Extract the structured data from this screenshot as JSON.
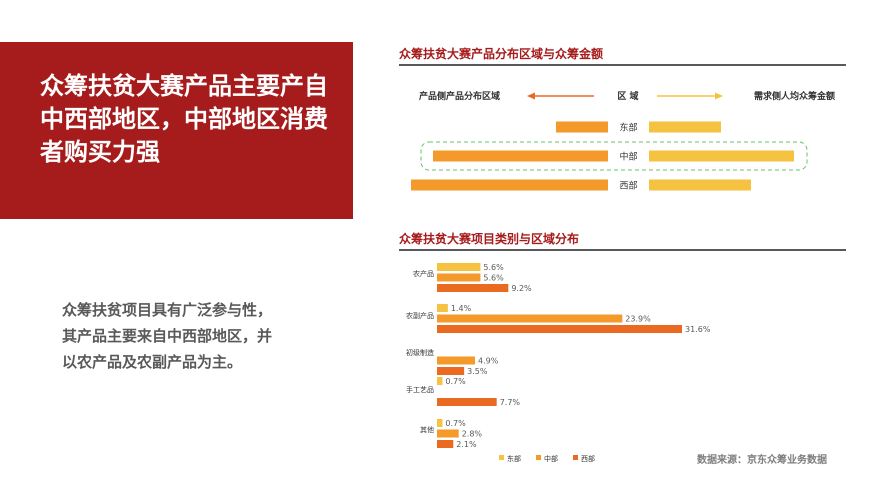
{
  "headline": "众筹扶贫大赛产品主要产自中西部地区，中部地区消费者购买力强",
  "body": "众筹扶贫项目具有广泛参与性，其产品主要来自中西部地区，并以农产品及农副产品为主。",
  "source": "数据来源：京东众筹业务数据",
  "colors": {
    "east": "#f5c242",
    "central": "#f39a2b",
    "west": "#ea6a22",
    "accent": "#a61b1b"
  },
  "chart_data": [
    {
      "type": "bar",
      "title": "众筹扶贫大赛产品分布区域与众筹金额",
      "left_label": "产品侧产品分布区域",
      "center_label": "区  域",
      "right_label": "需求侧人均众筹金额",
      "categories": [
        "东部",
        "中部",
        "西部"
      ],
      "highlight": "中部",
      "left_values": [
        52,
        175,
        197
      ],
      "right_values": [
        72,
        145,
        102
      ]
    },
    {
      "type": "bar",
      "title": "众筹扶贫大赛项目类别与区域分布",
      "categories": [
        "农产品",
        "农副产品",
        "初级制造",
        "手工艺品",
        "其他"
      ],
      "legend": [
        "东部",
        "中部",
        "西部"
      ],
      "legend_position": "bottom",
      "series": [
        {
          "name": "东部",
          "values": [
            5.6,
            1.4,
            0,
            0.7,
            0.7
          ]
        },
        {
          "name": "中部",
          "values": [
            5.6,
            23.9,
            4.9,
            0,
            2.8
          ]
        },
        {
          "name": "西部",
          "values": [
            9.2,
            31.6,
            3.5,
            7.7,
            2.1
          ]
        }
      ],
      "value_labels": [
        [
          "5.6%",
          "5.6%",
          "9.2%"
        ],
        [
          "1.4%",
          "23.9%",
          "31.6%"
        ],
        [
          "",
          "4.9%",
          "3.5%"
        ],
        [
          "0.7%",
          "",
          "7.7%"
        ],
        [
          "0.7%",
          "2.8%",
          "2.1%"
        ]
      ],
      "xlim": [
        0,
        33
      ]
    }
  ]
}
